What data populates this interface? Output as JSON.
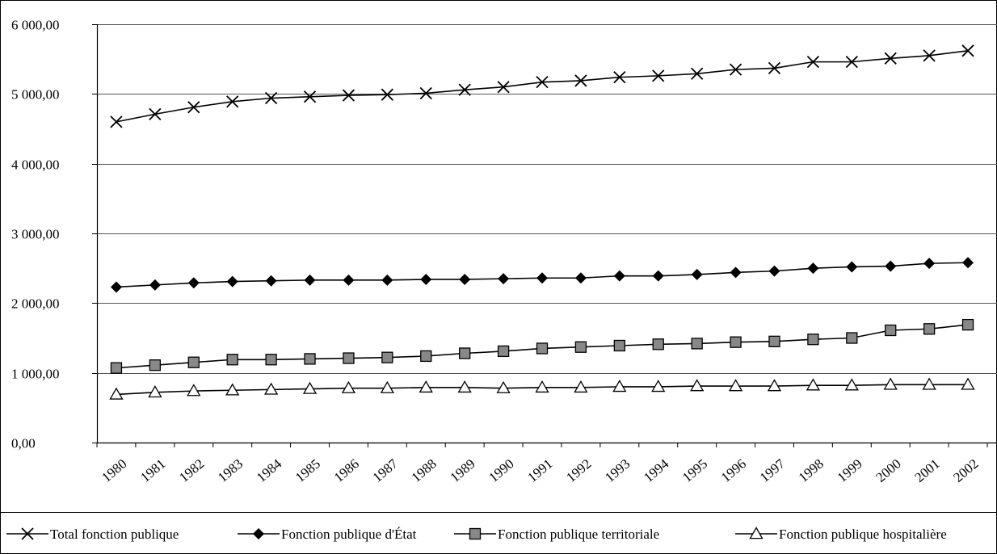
{
  "chart_data": {
    "type": "line",
    "title": "",
    "xlabel": "",
    "ylabel": "",
    "categories": [
      "1980",
      "1981",
      "1982",
      "1983",
      "1984",
      "1985",
      "1986",
      "1987",
      "1988",
      "1989",
      "1990",
      "1991",
      "1992",
      "1993",
      "1994",
      "1995",
      "1996",
      "1997",
      "1998",
      "1999",
      "2000",
      "2001",
      "2002"
    ],
    "y_ticks": [
      "0,00",
      "1 000,00",
      "2 000,00",
      "3 000,00",
      "4 000,00",
      "5 000,00",
      "6 000,00"
    ],
    "ylim": [
      0,
      6000
    ],
    "grid": true,
    "legend_position": "bottom",
    "series": [
      {
        "name": "Total fonction publique",
        "marker": "x",
        "values": [
          4600,
          4710,
          4810,
          4890,
          4940,
          4960,
          4980,
          4990,
          5010,
          5060,
          5100,
          5170,
          5190,
          5240,
          5260,
          5290,
          5350,
          5370,
          5460,
          5460,
          5510,
          5550,
          5620
        ]
      },
      {
        "name": "Fonction publique d'État",
        "marker": "diamond",
        "values": [
          2230,
          2260,
          2290,
          2310,
          2320,
          2330,
          2330,
          2330,
          2340,
          2340,
          2350,
          2360,
          2360,
          2390,
          2390,
          2410,
          2440,
          2460,
          2500,
          2520,
          2530,
          2570,
          2580
        ]
      },
      {
        "name": "Fonction publique territoriale",
        "marker": "square",
        "values": [
          1070,
          1110,
          1150,
          1190,
          1190,
          1200,
          1210,
          1220,
          1240,
          1280,
          1310,
          1350,
          1370,
          1390,
          1410,
          1420,
          1440,
          1450,
          1480,
          1500,
          1610,
          1630,
          1690
        ]
      },
      {
        "name": "Fonction publique hospitalière",
        "marker": "triangle",
        "values": [
          690,
          720,
          740,
          750,
          760,
          770,
          780,
          780,
          790,
          790,
          780,
          790,
          790,
          800,
          800,
          810,
          810,
          810,
          820,
          820,
          830,
          830,
          830
        ]
      }
    ]
  }
}
